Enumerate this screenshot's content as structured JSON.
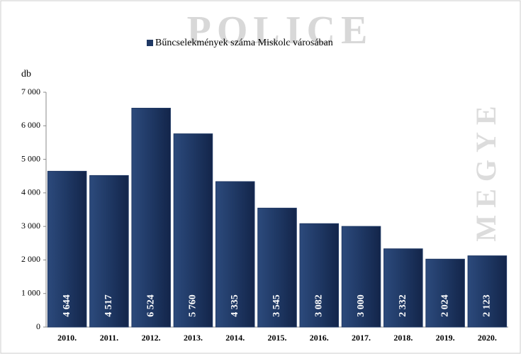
{
  "chart_data": {
    "type": "bar",
    "legend": "Bűncselekmények száma Miskolc városában",
    "y_label": "db",
    "watermark": [
      "POLICE",
      "MEGYE"
    ],
    "categories": [
      "2010.",
      "2011.",
      "2012.",
      "2013.",
      "2014.",
      "2015.",
      "2016.",
      "2017.",
      "2018.",
      "2019.",
      "2020."
    ],
    "values": [
      4644,
      4517,
      6524,
      5760,
      4335,
      3545,
      3082,
      3000,
      2332,
      2024,
      2123
    ],
    "value_labels": [
      "4 644",
      "4 517",
      "6 524",
      "5 760",
      "4 335",
      "3 545",
      "3 082",
      "3 000",
      "2 332",
      "2 024",
      "2 123"
    ],
    "color": "#1f3864",
    "ylim": [
      0,
      7000
    ],
    "yticks": [
      0,
      {
        "value": 1000,
        "label": "1 000"
      },
      {
        "value": 2000,
        "label": "2 000"
      },
      {
        "value": 3000,
        "label": "3 000"
      },
      {
        "value": 4000,
        "label": "4 000"
      },
      {
        "value": 5000,
        "label": "5 000"
      },
      {
        "value": 6000,
        "label": "6 000"
      },
      {
        "value": 7000,
        "label": "7 000"
      }
    ]
  }
}
